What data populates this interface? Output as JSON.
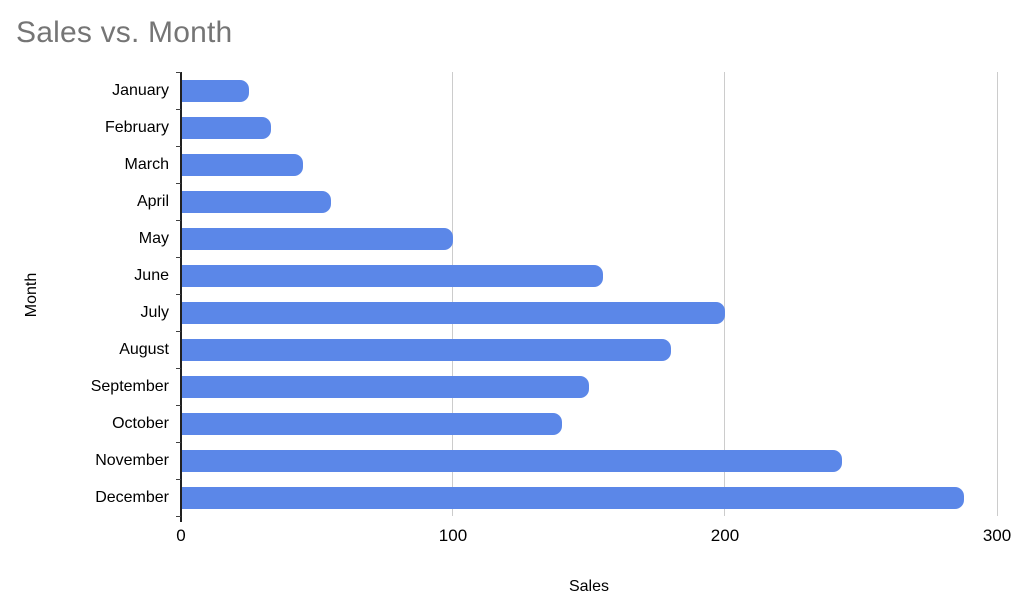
{
  "title": "Sales vs. Month",
  "chart_data": {
    "type": "bar",
    "orientation": "horizontal",
    "title": "Sales vs. Month",
    "xlabel": "Sales",
    "ylabel": "Month",
    "categories": [
      "January",
      "February",
      "March",
      "April",
      "May",
      "June",
      "July",
      "August",
      "September",
      "October",
      "November",
      "December"
    ],
    "values": [
      25,
      33,
      45,
      55,
      100,
      155,
      200,
      180,
      150,
      140,
      243,
      288
    ],
    "xlim": [
      0,
      300
    ],
    "xticks": [
      0,
      100,
      200,
      300
    ],
    "grid": true,
    "legend": "none",
    "bar_color": "#5b87e8",
    "gridline_color": "#cccccc",
    "axis_line_color": "#212121",
    "title_color": "#757575"
  }
}
